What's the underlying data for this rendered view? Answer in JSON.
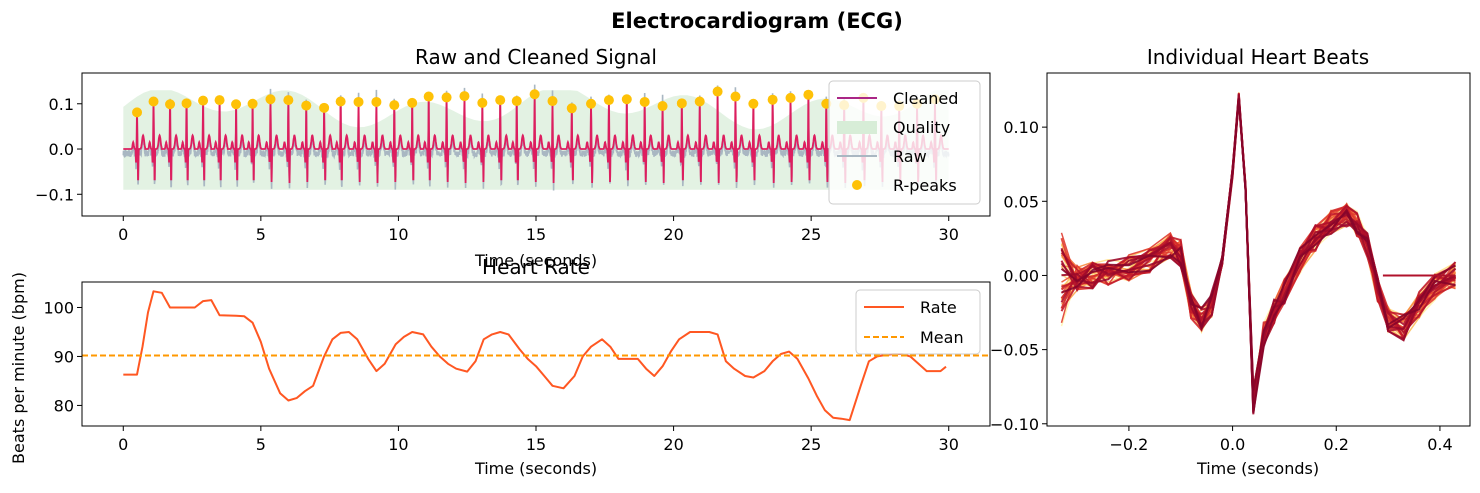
{
  "figure": {
    "title": "Electrocardiogram (ECG)"
  },
  "colors": {
    "cleaned": "#dd1e5f",
    "raw": "#a9b7c2",
    "quality": "#d7edd7",
    "rpeaks": "#fec107",
    "rate": "#ff5722",
    "mean": "#ff9800"
  },
  "chart_data": [
    {
      "type": "line",
      "title": "Raw and Cleaned Signal",
      "xlabel": "Time (seconds)",
      "ylabel": "",
      "xlim": [
        -1.5,
        31.5
      ],
      "ylim": [
        -0.148,
        0.168
      ],
      "xticks": [
        "0",
        "5",
        "10",
        "15",
        "20",
        "25",
        "30"
      ],
      "xtick_values": [
        0,
        5,
        10,
        15,
        20,
        25,
        30
      ],
      "yticks": [
        "−0.1",
        "0.0",
        "0.1"
      ],
      "ytick_values": [
        -0.1,
        0,
        0.1
      ],
      "legend": {
        "placement": "top-right",
        "entries": [
          "Cleaned",
          "Quality",
          "Raw",
          "R-peaks"
        ]
      },
      "rpeaks": {
        "name": "R-peaks",
        "x": [
          0.5,
          1.1,
          1.7,
          2.3,
          2.9,
          3.5,
          4.1,
          4.7,
          5.35,
          6.0,
          6.65,
          7.3,
          7.9,
          8.55,
          9.2,
          9.85,
          10.5,
          11.1,
          11.75,
          12.4,
          13.05,
          13.7,
          14.3,
          14.95,
          15.6,
          16.3,
          17.0,
          17.65,
          18.3,
          18.95,
          19.6,
          20.3,
          20.95,
          21.6,
          22.25,
          22.9,
          23.6,
          24.25,
          24.9,
          25.55,
          26.2,
          26.9,
          27.55,
          28.2,
          28.85,
          29.5
        ],
        "y": [
          0.081,
          0.105,
          0.099,
          0.101,
          0.107,
          0.108,
          0.099,
          0.1,
          0.11,
          0.108,
          0.096,
          0.091,
          0.105,
          0.104,
          0.104,
          0.097,
          0.102,
          0.116,
          0.114,
          0.117,
          0.102,
          0.108,
          0.106,
          0.121,
          0.106,
          0.09,
          0.1,
          0.108,
          0.11,
          0.104,
          0.095,
          0.101,
          0.105,
          0.127,
          0.116,
          0.1,
          0.109,
          0.113,
          0.12,
          0.1,
          0.097,
          0.113,
          0.095,
          0.095,
          0.1,
          0.11
        ]
      }
    },
    {
      "type": "line",
      "title": "Heart Rate",
      "xlabel": "Time (seconds)",
      "ylabel": "Beats per minute (bpm)",
      "xlim": [
        -1.5,
        31.5
      ],
      "ylim": [
        75.8,
        105.2
      ],
      "xticks": [
        "0",
        "5",
        "10",
        "15",
        "20",
        "25",
        "30"
      ],
      "xtick_values": [
        0,
        5,
        10,
        15,
        20,
        25,
        30
      ],
      "yticks": [
        "80",
        "90",
        "100"
      ],
      "ytick_values": [
        80,
        90,
        100
      ],
      "legend": {
        "placement": "top-right",
        "entries": [
          "Rate",
          "Mean"
        ]
      },
      "series": [
        {
          "name": "Rate",
          "x": [
            0,
            0.5,
            0.7,
            0.9,
            1.1,
            1.4,
            1.7,
            2.3,
            2.6,
            2.9,
            3.2,
            3.5,
            4.1,
            4.4,
            4.7,
            5.0,
            5.3,
            5.7,
            6.0,
            6.3,
            6.6,
            6.9,
            7.3,
            7.6,
            7.9,
            8.2,
            8.5,
            8.9,
            9.2,
            9.5,
            9.9,
            10.2,
            10.5,
            10.9,
            11.2,
            11.5,
            11.8,
            12.1,
            12.5,
            12.8,
            13.1,
            13.4,
            13.7,
            14.0,
            14.4,
            14.7,
            15.0,
            15.3,
            15.6,
            16.0,
            16.4,
            16.7,
            17.0,
            17.4,
            17.7,
            18.0,
            18.4,
            18.7,
            19.0,
            19.3,
            19.6,
            19.9,
            20.2,
            20.6,
            21.0,
            21.3,
            21.6,
            21.9,
            22.2,
            22.6,
            22.9,
            23.3,
            23.6,
            23.9,
            24.2,
            24.5,
            24.9,
            25.2,
            25.5,
            25.8,
            26.1,
            26.4,
            26.8,
            27.1,
            27.4,
            27.7,
            28.0,
            28.3,
            28.6,
            28.9,
            29.2,
            29.5,
            29.7,
            29.9
          ],
          "y": [
            86.3,
            86.3,
            92,
            99,
            103.3,
            103,
            100,
            100,
            100,
            101.3,
            101.5,
            98.4,
            98.3,
            98.2,
            96.9,
            93,
            87.5,
            82.5,
            81,
            81.5,
            82.9,
            84,
            90,
            93.5,
            94.8,
            95,
            93.5,
            89.5,
            87,
            88.5,
            92.5,
            94,
            95,
            94.5,
            92,
            90,
            88.5,
            87.5,
            86.9,
            89,
            93.5,
            94.5,
            95,
            94.5,
            91.5,
            89.5,
            88,
            86,
            84,
            83.5,
            86,
            90,
            92,
            93.5,
            92,
            89.5,
            89.5,
            89.5,
            87.5,
            86,
            88,
            91,
            93.5,
            95,
            95,
            95,
            94.5,
            89,
            87.5,
            86,
            85.7,
            87,
            89,
            90.5,
            91,
            89.5,
            85.5,
            82,
            79,
            77.5,
            77.3,
            77,
            84,
            89,
            90,
            90.3,
            90.5,
            90.5,
            90,
            88.5,
            87,
            87,
            87,
            87.9
          ]
        },
        {
          "name": "Mean",
          "value": 90.2
        }
      ]
    },
    {
      "type": "line",
      "title": "Individual Heart Beats",
      "xlabel": "Time (seconds)",
      "ylabel": "",
      "xlim": [
        -0.358,
        0.458
      ],
      "ylim": [
        -0.1015,
        0.1365
      ],
      "xticks": [
        "−0.2",
        "0.0",
        "0.2",
        "0.4"
      ],
      "xtick_values": [
        -0.2,
        0,
        0.2,
        0.4
      ],
      "yticks": [
        "−0.10",
        "−0.05",
        "0.00",
        "0.05",
        "0.10"
      ],
      "ytick_values": [
        -0.1,
        -0.05,
        0,
        0.05,
        0.1
      ],
      "template": {
        "x": [
          -0.33,
          -0.3,
          -0.27,
          -0.24,
          -0.2,
          -0.16,
          -0.12,
          -0.1,
          -0.08,
          -0.06,
          -0.04,
          -0.02,
          0,
          0.012,
          0.025,
          0.04,
          0.06,
          0.08,
          0.1,
          0.13,
          0.16,
          0.19,
          0.22,
          0.24,
          0.26,
          0.28,
          0.3,
          0.33,
          0.36,
          0.39,
          0.43
        ],
        "y": [
          -0.005,
          -0.002,
          0.0,
          0.002,
          0.005,
          0.01,
          0.02,
          0.015,
          -0.02,
          -0.03,
          -0.02,
          0.01,
          0.07,
          0.12,
          0.06,
          -0.085,
          -0.04,
          -0.025,
          -0.01,
          0.01,
          0.025,
          0.035,
          0.04,
          0.035,
          0.02,
          -0.01,
          -0.03,
          -0.035,
          -0.02,
          -0.008,
          0.0
        ]
      },
      "beat_colors": [
        "#fff3b0",
        "#ffe08a",
        "#fdd07a",
        "#fcbf5e",
        "#fba54c",
        "#f88b3f",
        "#f3703a",
        "#ec5435",
        "#e03b2f",
        "#d2282b",
        "#c21b2a",
        "#b0112b",
        "#9c0a2b",
        "#86042a"
      ]
    }
  ]
}
